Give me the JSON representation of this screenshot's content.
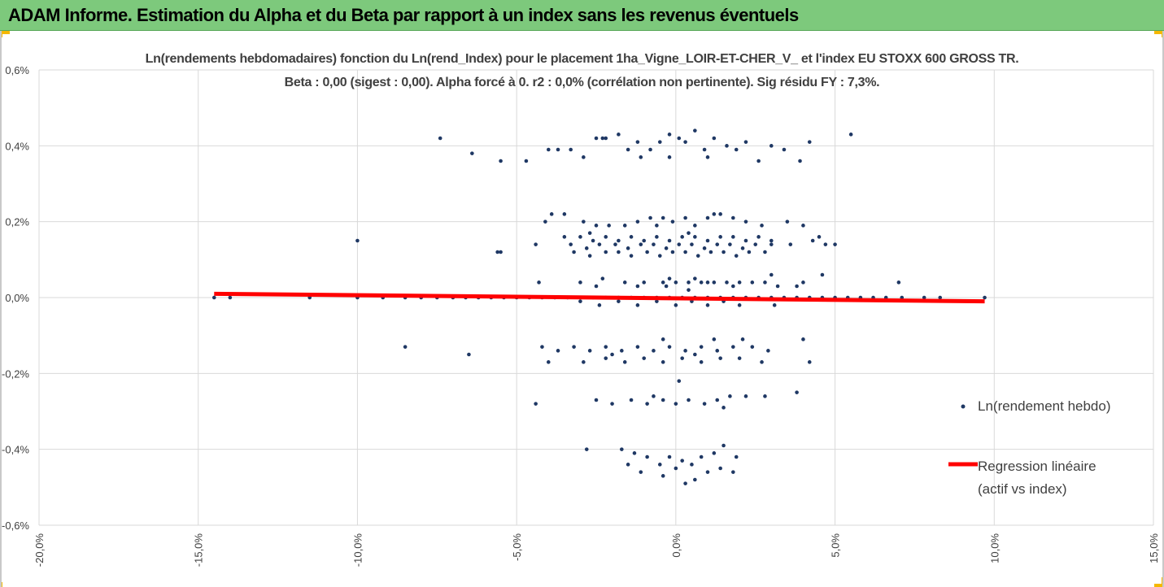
{
  "banner": {
    "title": "ADAM Informe. Estimation du Alpha et du Beta par rapport à un index sans les revenus éventuels",
    "background": "#7dc97c",
    "corner_color": "#f5b800"
  },
  "chart_data": {
    "type": "scatter",
    "title_lines": [
      "Ln(rendements hebdomadaires) fonction du Ln(rend_Index) pour le placement 1ha_Vigne_LOIR-ET-CHER_V_ et l'index EU STOXX 600 GROSS TR.",
      "Beta : 0,00 (sigest : 0,00). Alpha forcé à 0. r2 : 0,0% (corrélation non pertinente). Sig résidu FY : 7,3%."
    ],
    "xlim": [
      -0.2,
      0.15
    ],
    "ylim": [
      -0.006,
      0.006
    ],
    "x_ticks": [
      -0.2,
      -0.15,
      -0.1,
      -0.05,
      0.0,
      0.05,
      0.1,
      0.15
    ],
    "x_tick_labels": [
      "-20,0%",
      "-15,0%",
      "-10,0%",
      "-5,0%",
      "0,0%",
      "5,0%",
      "10,0%",
      "15,0%"
    ],
    "y_ticks": [
      0.006,
      0.004,
      0.002,
      0.0,
      -0.002,
      -0.004,
      -0.006
    ],
    "y_tick_labels": [
      "0,6%",
      "0,4%",
      "0,2%",
      "0,0%",
      "-0,2%",
      "-0,4%",
      "-0,6%"
    ],
    "grid": true,
    "legend_position": "right",
    "series": [
      {
        "name": "Ln(rendement hebdo)",
        "kind": "points",
        "color": "#1f3864",
        "points": [
          [
            -0.074,
            0.0042
          ],
          [
            -0.064,
            0.0038
          ],
          [
            -0.055,
            0.0036
          ],
          [
            -0.047,
            0.0036
          ],
          [
            -0.04,
            0.0039
          ],
          [
            -0.037,
            0.0039
          ],
          [
            -0.033,
            0.0039
          ],
          [
            -0.029,
            0.0037
          ],
          [
            -0.025,
            0.0042
          ],
          [
            -0.022,
            0.0042
          ],
          [
            -0.018,
            0.0043
          ],
          [
            -0.015,
            0.0039
          ],
          [
            -0.012,
            0.0041
          ],
          [
            -0.008,
            0.0039
          ],
          [
            -0.005,
            0.0041
          ],
          [
            -0.002,
            0.0037
          ],
          [
            0.001,
            0.0042
          ],
          [
            0.003,
            0.0041
          ],
          [
            0.006,
            0.0044
          ],
          [
            0.009,
            0.0039
          ],
          [
            0.012,
            0.0042
          ],
          [
            0.016,
            0.004
          ],
          [
            0.019,
            0.0039
          ],
          [
            0.022,
            0.0041
          ],
          [
            0.026,
            0.0036
          ],
          [
            0.03,
            0.004
          ],
          [
            0.034,
            0.0039
          ],
          [
            0.039,
            0.0036
          ],
          [
            0.042,
            0.0041
          ],
          [
            0.055,
            0.0043
          ],
          [
            -0.011,
            0.0037
          ],
          [
            -0.023,
            0.0042
          ],
          [
            0.01,
            0.0037
          ],
          [
            -0.002,
            0.0043
          ],
          [
            -0.039,
            0.0022
          ],
          [
            -0.035,
            0.0022
          ],
          [
            -0.029,
            0.002
          ],
          [
            -0.025,
            0.0019
          ],
          [
            -0.021,
            0.0019
          ],
          [
            -0.016,
            0.0019
          ],
          [
            -0.012,
            0.002
          ],
          [
            -0.008,
            0.0021
          ],
          [
            -0.004,
            0.0021
          ],
          [
            -0.001,
            0.002
          ],
          [
            0.003,
            0.0021
          ],
          [
            0.006,
            0.0019
          ],
          [
            0.01,
            0.0021
          ],
          [
            0.014,
            0.0022
          ],
          [
            0.018,
            0.0021
          ],
          [
            0.022,
            0.002
          ],
          [
            0.027,
            0.0019
          ],
          [
            0.035,
            0.002
          ],
          [
            0.04,
            0.0019
          ],
          [
            -0.041,
            0.002
          ],
          [
            -0.006,
            0.0019
          ],
          [
            0.012,
            0.0022
          ],
          [
            -0.035,
            0.0016
          ],
          [
            -0.03,
            0.0016
          ],
          [
            -0.026,
            0.0015
          ],
          [
            -0.022,
            0.0016
          ],
          [
            -0.018,
            0.0015
          ],
          [
            -0.014,
            0.0016
          ],
          [
            -0.01,
            0.0015
          ],
          [
            -0.006,
            0.0016
          ],
          [
            -0.002,
            0.0015
          ],
          [
            0.002,
            0.0016
          ],
          [
            0.006,
            0.0016
          ],
          [
            0.01,
            0.0015
          ],
          [
            0.014,
            0.0016
          ],
          [
            0.018,
            0.0016
          ],
          [
            0.022,
            0.0015
          ],
          [
            0.026,
            0.0016
          ],
          [
            0.03,
            0.0015
          ],
          [
            0.045,
            0.0016
          ],
          [
            -0.027,
            0.0017
          ],
          [
            0.004,
            0.0017
          ],
          [
            -0.044,
            0.0014
          ],
          [
            -0.033,
            0.0014
          ],
          [
            -0.028,
            0.0013
          ],
          [
            -0.024,
            0.0014
          ],
          [
            -0.019,
            0.0014
          ],
          [
            -0.015,
            0.0013
          ],
          [
            -0.011,
            0.0014
          ],
          [
            -0.007,
            0.0014
          ],
          [
            -0.003,
            0.0013
          ],
          [
            0.001,
            0.0014
          ],
          [
            0.005,
            0.0014
          ],
          [
            0.009,
            0.0013
          ],
          [
            0.013,
            0.0014
          ],
          [
            0.017,
            0.0014
          ],
          [
            0.021,
            0.0013
          ],
          [
            0.025,
            0.0014
          ],
          [
            0.03,
            0.0014
          ],
          [
            0.036,
            0.0014
          ],
          [
            0.043,
            0.0015
          ],
          [
            0.047,
            0.0014
          ],
          [
            0.05,
            0.0014
          ],
          [
            -0.1,
            0.0015
          ],
          [
            -0.032,
            0.0012
          ],
          [
            -0.027,
            0.0011
          ],
          [
            -0.022,
            0.0012
          ],
          [
            -0.018,
            0.0012
          ],
          [
            -0.014,
            0.0011
          ],
          [
            -0.009,
            0.0012
          ],
          [
            -0.005,
            0.0011
          ],
          [
            -0.001,
            0.0012
          ],
          [
            0.003,
            0.0012
          ],
          [
            0.007,
            0.0011
          ],
          [
            0.011,
            0.0012
          ],
          [
            0.015,
            0.0012
          ],
          [
            0.019,
            0.0011
          ],
          [
            0.023,
            0.0012
          ],
          [
            0.028,
            0.0012
          ],
          [
            -0.056,
            0.0012
          ],
          [
            -0.055,
            0.0012
          ],
          [
            -0.043,
            0.0004
          ],
          [
            -0.03,
            0.0004
          ],
          [
            -0.023,
            0.0005
          ],
          [
            -0.016,
            0.0004
          ],
          [
            -0.01,
            0.0004
          ],
          [
            -0.004,
            0.0004
          ],
          [
            0.0,
            0.0004
          ],
          [
            0.004,
            0.0004
          ],
          [
            0.006,
            0.0005
          ],
          [
            0.008,
            0.0004
          ],
          [
            0.012,
            0.0004
          ],
          [
            0.016,
            0.0004
          ],
          [
            0.02,
            0.0004
          ],
          [
            0.024,
            0.0004
          ],
          [
            0.028,
            0.0004
          ],
          [
            0.032,
            0.0003
          ],
          [
            0.04,
            0.0004
          ],
          [
            0.046,
            0.0006
          ],
          [
            0.07,
            0.0004
          ],
          [
            -0.002,
            0.0005
          ],
          [
            0.01,
            0.0004
          ],
          [
            -0.025,
            0.0003
          ],
          [
            -0.012,
            0.0003
          ],
          [
            -0.003,
            0.0003
          ],
          [
            0.004,
            0.0002
          ],
          [
            0.018,
            0.0003
          ],
          [
            0.03,
            0.0006
          ],
          [
            0.038,
            0.0003
          ],
          [
            -0.145,
            0.0
          ],
          [
            -0.14,
            0.0
          ],
          [
            -0.115,
            0.0
          ],
          [
            -0.1,
            0.0
          ],
          [
            -0.092,
            0.0
          ],
          [
            -0.085,
            0.0
          ],
          [
            -0.08,
            0.0
          ],
          [
            -0.075,
            0.0
          ],
          [
            -0.07,
            0.0
          ],
          [
            -0.066,
            0.0
          ],
          [
            -0.062,
            0.0
          ],
          [
            -0.058,
            0.0
          ],
          [
            -0.054,
            0.0
          ],
          [
            -0.05,
            0.0
          ],
          [
            -0.046,
            0.0
          ],
          [
            -0.042,
            0.0
          ],
          [
            -0.038,
            0.0
          ],
          [
            -0.034,
            0.0
          ],
          [
            -0.03,
            0.0
          ],
          [
            -0.026,
            0.0
          ],
          [
            -0.022,
            0.0
          ],
          [
            -0.018,
            0.0
          ],
          [
            -0.014,
            0.0
          ],
          [
            -0.01,
            0.0
          ],
          [
            -0.006,
            0.0
          ],
          [
            -0.002,
            0.0
          ],
          [
            0.002,
            0.0
          ],
          [
            0.006,
            0.0
          ],
          [
            0.01,
            0.0
          ],
          [
            0.014,
            0.0
          ],
          [
            0.018,
            0.0
          ],
          [
            0.022,
            0.0
          ],
          [
            0.026,
            0.0
          ],
          [
            0.03,
            0.0
          ],
          [
            0.034,
            0.0
          ],
          [
            0.038,
            0.0
          ],
          [
            0.042,
            0.0
          ],
          [
            0.046,
            0.0
          ],
          [
            0.05,
            0.0
          ],
          [
            0.054,
            0.0
          ],
          [
            0.058,
            0.0
          ],
          [
            0.062,
            0.0
          ],
          [
            0.066,
            0.0
          ],
          [
            0.071,
            0.0
          ],
          [
            0.078,
            0.0
          ],
          [
            0.083,
            0.0
          ],
          [
            0.097,
            0.0
          ],
          [
            -0.03,
            -0.0001
          ],
          [
            -0.024,
            -0.0002
          ],
          [
            -0.018,
            -0.0001
          ],
          [
            -0.012,
            -0.0002
          ],
          [
            -0.006,
            -0.0001
          ],
          [
            0.0,
            -0.0002
          ],
          [
            0.005,
            -0.0001
          ],
          [
            0.01,
            -0.0002
          ],
          [
            0.015,
            -0.0001
          ],
          [
            0.02,
            -0.0002
          ],
          [
            0.031,
            -0.0002
          ],
          [
            -0.042,
            -0.0013
          ],
          [
            -0.037,
            -0.0014
          ],
          [
            -0.032,
            -0.0013
          ],
          [
            -0.027,
            -0.0014
          ],
          [
            -0.022,
            -0.0013
          ],
          [
            -0.017,
            -0.0014
          ],
          [
            -0.012,
            -0.0013
          ],
          [
            -0.007,
            -0.0014
          ],
          [
            -0.002,
            -0.0013
          ],
          [
            0.003,
            -0.0014
          ],
          [
            0.008,
            -0.0013
          ],
          [
            0.013,
            -0.0014
          ],
          [
            0.018,
            -0.0013
          ],
          [
            0.024,
            -0.0013
          ],
          [
            0.029,
            -0.0014
          ],
          [
            0.04,
            -0.0011
          ],
          [
            -0.085,
            -0.0013
          ],
          [
            -0.004,
            -0.0011
          ],
          [
            0.012,
            -0.0011
          ],
          [
            0.021,
            -0.0011
          ],
          [
            -0.04,
            -0.0017
          ],
          [
            -0.029,
            -0.0017
          ],
          [
            -0.022,
            -0.0016
          ],
          [
            -0.016,
            -0.0017
          ],
          [
            -0.01,
            -0.0016
          ],
          [
            -0.004,
            -0.0017
          ],
          [
            0.002,
            -0.0016
          ],
          [
            0.008,
            -0.0017
          ],
          [
            0.014,
            -0.0016
          ],
          [
            0.02,
            -0.0016
          ],
          [
            0.027,
            -0.0017
          ],
          [
            -0.065,
            -0.0015
          ],
          [
            0.042,
            -0.0017
          ],
          [
            -0.02,
            -0.0015
          ],
          [
            0.006,
            -0.0015
          ],
          [
            -0.044,
            -0.0028
          ],
          [
            -0.025,
            -0.0027
          ],
          [
            -0.02,
            -0.0028
          ],
          [
            -0.014,
            -0.0027
          ],
          [
            -0.009,
            -0.0028
          ],
          [
            -0.004,
            -0.0027
          ],
          [
            0.0,
            -0.0028
          ],
          [
            0.004,
            -0.0027
          ],
          [
            0.009,
            -0.0028
          ],
          [
            0.013,
            -0.0027
          ],
          [
            0.017,
            -0.0026
          ],
          [
            0.022,
            -0.0026
          ],
          [
            0.028,
            -0.0026
          ],
          [
            0.038,
            -0.0025
          ],
          [
            0.001,
            -0.0022
          ],
          [
            -0.007,
            -0.0026
          ],
          [
            0.015,
            -0.0029
          ],
          [
            -0.028,
            -0.004
          ],
          [
            -0.017,
            -0.004
          ],
          [
            -0.013,
            -0.0041
          ],
          [
            -0.009,
            -0.0042
          ],
          [
            -0.005,
            -0.0044
          ],
          [
            -0.002,
            -0.0042
          ],
          [
            0.002,
            -0.0043
          ],
          [
            0.005,
            -0.0044
          ],
          [
            0.008,
            -0.0042
          ],
          [
            0.012,
            -0.0041
          ],
          [
            0.015,
            -0.0039
          ],
          [
            0.019,
            -0.0042
          ],
          [
            -0.011,
            -0.0046
          ],
          [
            -0.004,
            -0.0047
          ],
          [
            0.0,
            -0.0045
          ],
          [
            0.006,
            -0.0048
          ],
          [
            0.01,
            -0.0046
          ],
          [
            0.018,
            -0.0046
          ],
          [
            0.003,
            -0.0049
          ],
          [
            -0.015,
            -0.0044
          ],
          [
            0.014,
            -0.0045
          ]
        ]
      },
      {
        "name": "Regression linéaire\n(actif vs index)",
        "kind": "line",
        "color": "#ff0000",
        "points": [
          [
            -0.145,
            0.0001
          ],
          [
            0.097,
            -0.0001
          ]
        ]
      }
    ]
  }
}
